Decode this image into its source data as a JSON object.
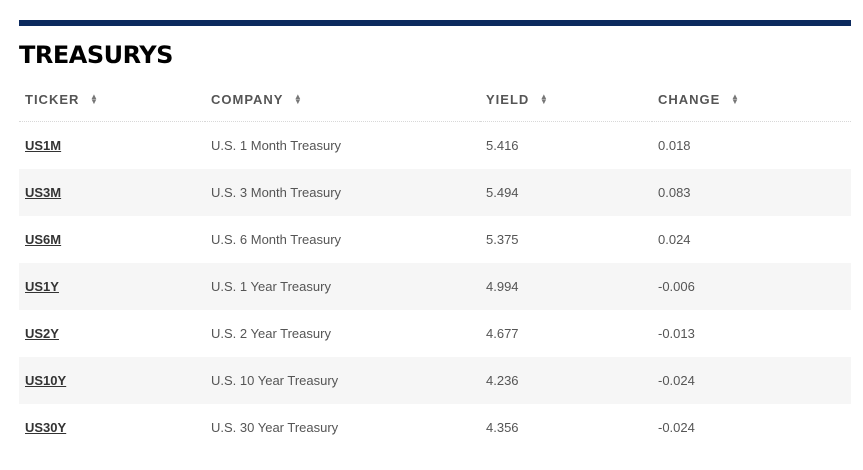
{
  "section": {
    "title": "TREASURYS"
  },
  "table": {
    "headers": {
      "ticker": "TICKER",
      "company": "COMPANY",
      "yield": "YIELD",
      "change": "CHANGE"
    },
    "rows": [
      {
        "ticker": "US1M",
        "company": "U.S. 1 Month Treasury",
        "yield": "5.416",
        "change": "0.018"
      },
      {
        "ticker": "US3M",
        "company": "U.S. 3 Month Treasury",
        "yield": "5.494",
        "change": "0.083"
      },
      {
        "ticker": "US6M",
        "company": "U.S. 6 Month Treasury",
        "yield": "5.375",
        "change": "0.024"
      },
      {
        "ticker": "US1Y",
        "company": "U.S. 1 Year Treasury",
        "yield": "4.994",
        "change": "-0.006"
      },
      {
        "ticker": "US2Y",
        "company": "U.S. 2 Year Treasury",
        "yield": "4.677",
        "change": "-0.013"
      },
      {
        "ticker": "US10Y",
        "company": "U.S. 10 Year Treasury",
        "yield": "4.236",
        "change": "-0.024"
      },
      {
        "ticker": "US30Y",
        "company": "U.S. 30 Year Treasury",
        "yield": "4.356",
        "change": "-0.024"
      }
    ]
  },
  "colors": {
    "accent_rule": "#0c2a5e",
    "alt_row": "#f6f6f6",
    "text": "#555555"
  }
}
